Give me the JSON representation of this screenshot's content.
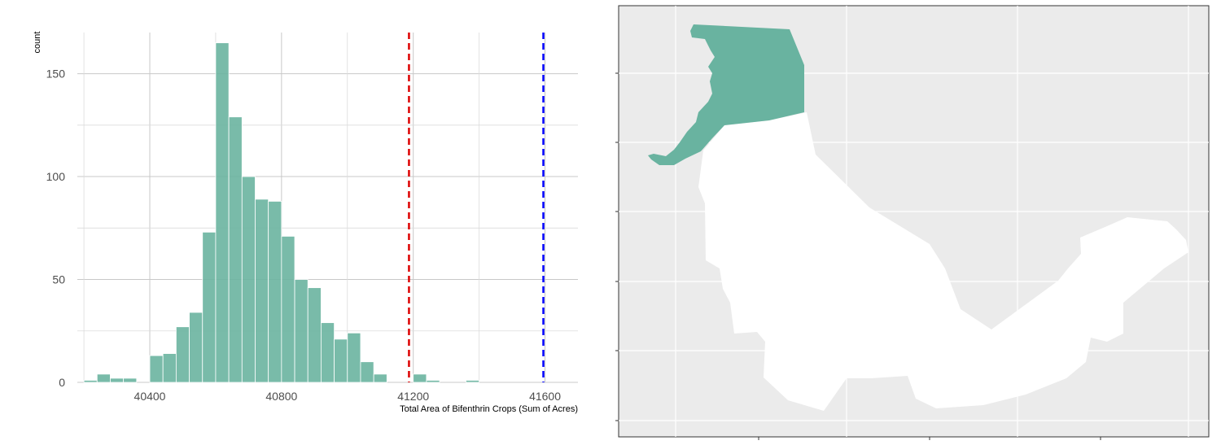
{
  "chart_data": [
    {
      "type": "bar",
      "subtype": "histogram",
      "xlabel": "Total Area of Bifenthrin Crops (Sum of Acres)",
      "ylabel": "count",
      "xlim": [
        40180,
        41700
      ],
      "ylim": [
        0,
        170
      ],
      "bin_width": 40,
      "x_ticks": [
        40400,
        40800,
        41200,
        41600
      ],
      "y_ticks": [
        0,
        50,
        100,
        150
      ],
      "bins": [
        {
          "x0": 40200,
          "x1": 40240,
          "count": 1
        },
        {
          "x0": 40240,
          "x1": 40280,
          "count": 4
        },
        {
          "x0": 40280,
          "x1": 40320,
          "count": 2
        },
        {
          "x0": 40320,
          "x1": 40360,
          "count": 2
        },
        {
          "x0": 40360,
          "x1": 40400,
          "count": 0
        },
        {
          "x0": 40400,
          "x1": 40440,
          "count": 13
        },
        {
          "x0": 40440,
          "x1": 40480,
          "count": 14
        },
        {
          "x0": 40480,
          "x1": 40520,
          "count": 27
        },
        {
          "x0": 40520,
          "x1": 40560,
          "count": 34
        },
        {
          "x0": 40560,
          "x1": 40600,
          "count": 73
        },
        {
          "x0": 40600,
          "x1": 40640,
          "count": 165
        },
        {
          "x0": 40640,
          "x1": 40680,
          "count": 129
        },
        {
          "x0": 40680,
          "x1": 40720,
          "count": 100
        },
        {
          "x0": 40720,
          "x1": 40760,
          "count": 89
        },
        {
          "x0": 40760,
          "x1": 40800,
          "count": 88
        },
        {
          "x0": 40800,
          "x1": 40840,
          "count": 71
        },
        {
          "x0": 40840,
          "x1": 40880,
          "count": 50
        },
        {
          "x0": 40880,
          "x1": 40920,
          "count": 46
        },
        {
          "x0": 40920,
          "x1": 40960,
          "count": 29
        },
        {
          "x0": 40960,
          "x1": 41000,
          "count": 21
        },
        {
          "x0": 41000,
          "x1": 41040,
          "count": 24
        },
        {
          "x0": 41040,
          "x1": 41080,
          "count": 10
        },
        {
          "x0": 41080,
          "x1": 41120,
          "count": 4
        },
        {
          "x0": 41120,
          "x1": 41160,
          "count": 0
        },
        {
          "x0": 41160,
          "x1": 41200,
          "count": 0
        },
        {
          "x0": 41200,
          "x1": 41240,
          "count": 4
        },
        {
          "x0": 41240,
          "x1": 41280,
          "count": 1
        },
        {
          "x0": 41280,
          "x1": 41320,
          "count": 0
        },
        {
          "x0": 41320,
          "x1": 41360,
          "count": 0
        },
        {
          "x0": 41360,
          "x1": 41400,
          "count": 1
        }
      ],
      "reference_lines": [
        {
          "x": 41187,
          "color": "#dd0000",
          "style": "dashed"
        },
        {
          "x": 41595,
          "color": "#0000ff",
          "style": "dashed"
        }
      ],
      "bar_fill": "#6ab4a0",
      "grid": true
    },
    {
      "type": "map",
      "background": "#ebebeb",
      "highlighted_region_fill": "#69b3a0",
      "other_region_fill": "#ffffff",
      "grid": true
    }
  ]
}
